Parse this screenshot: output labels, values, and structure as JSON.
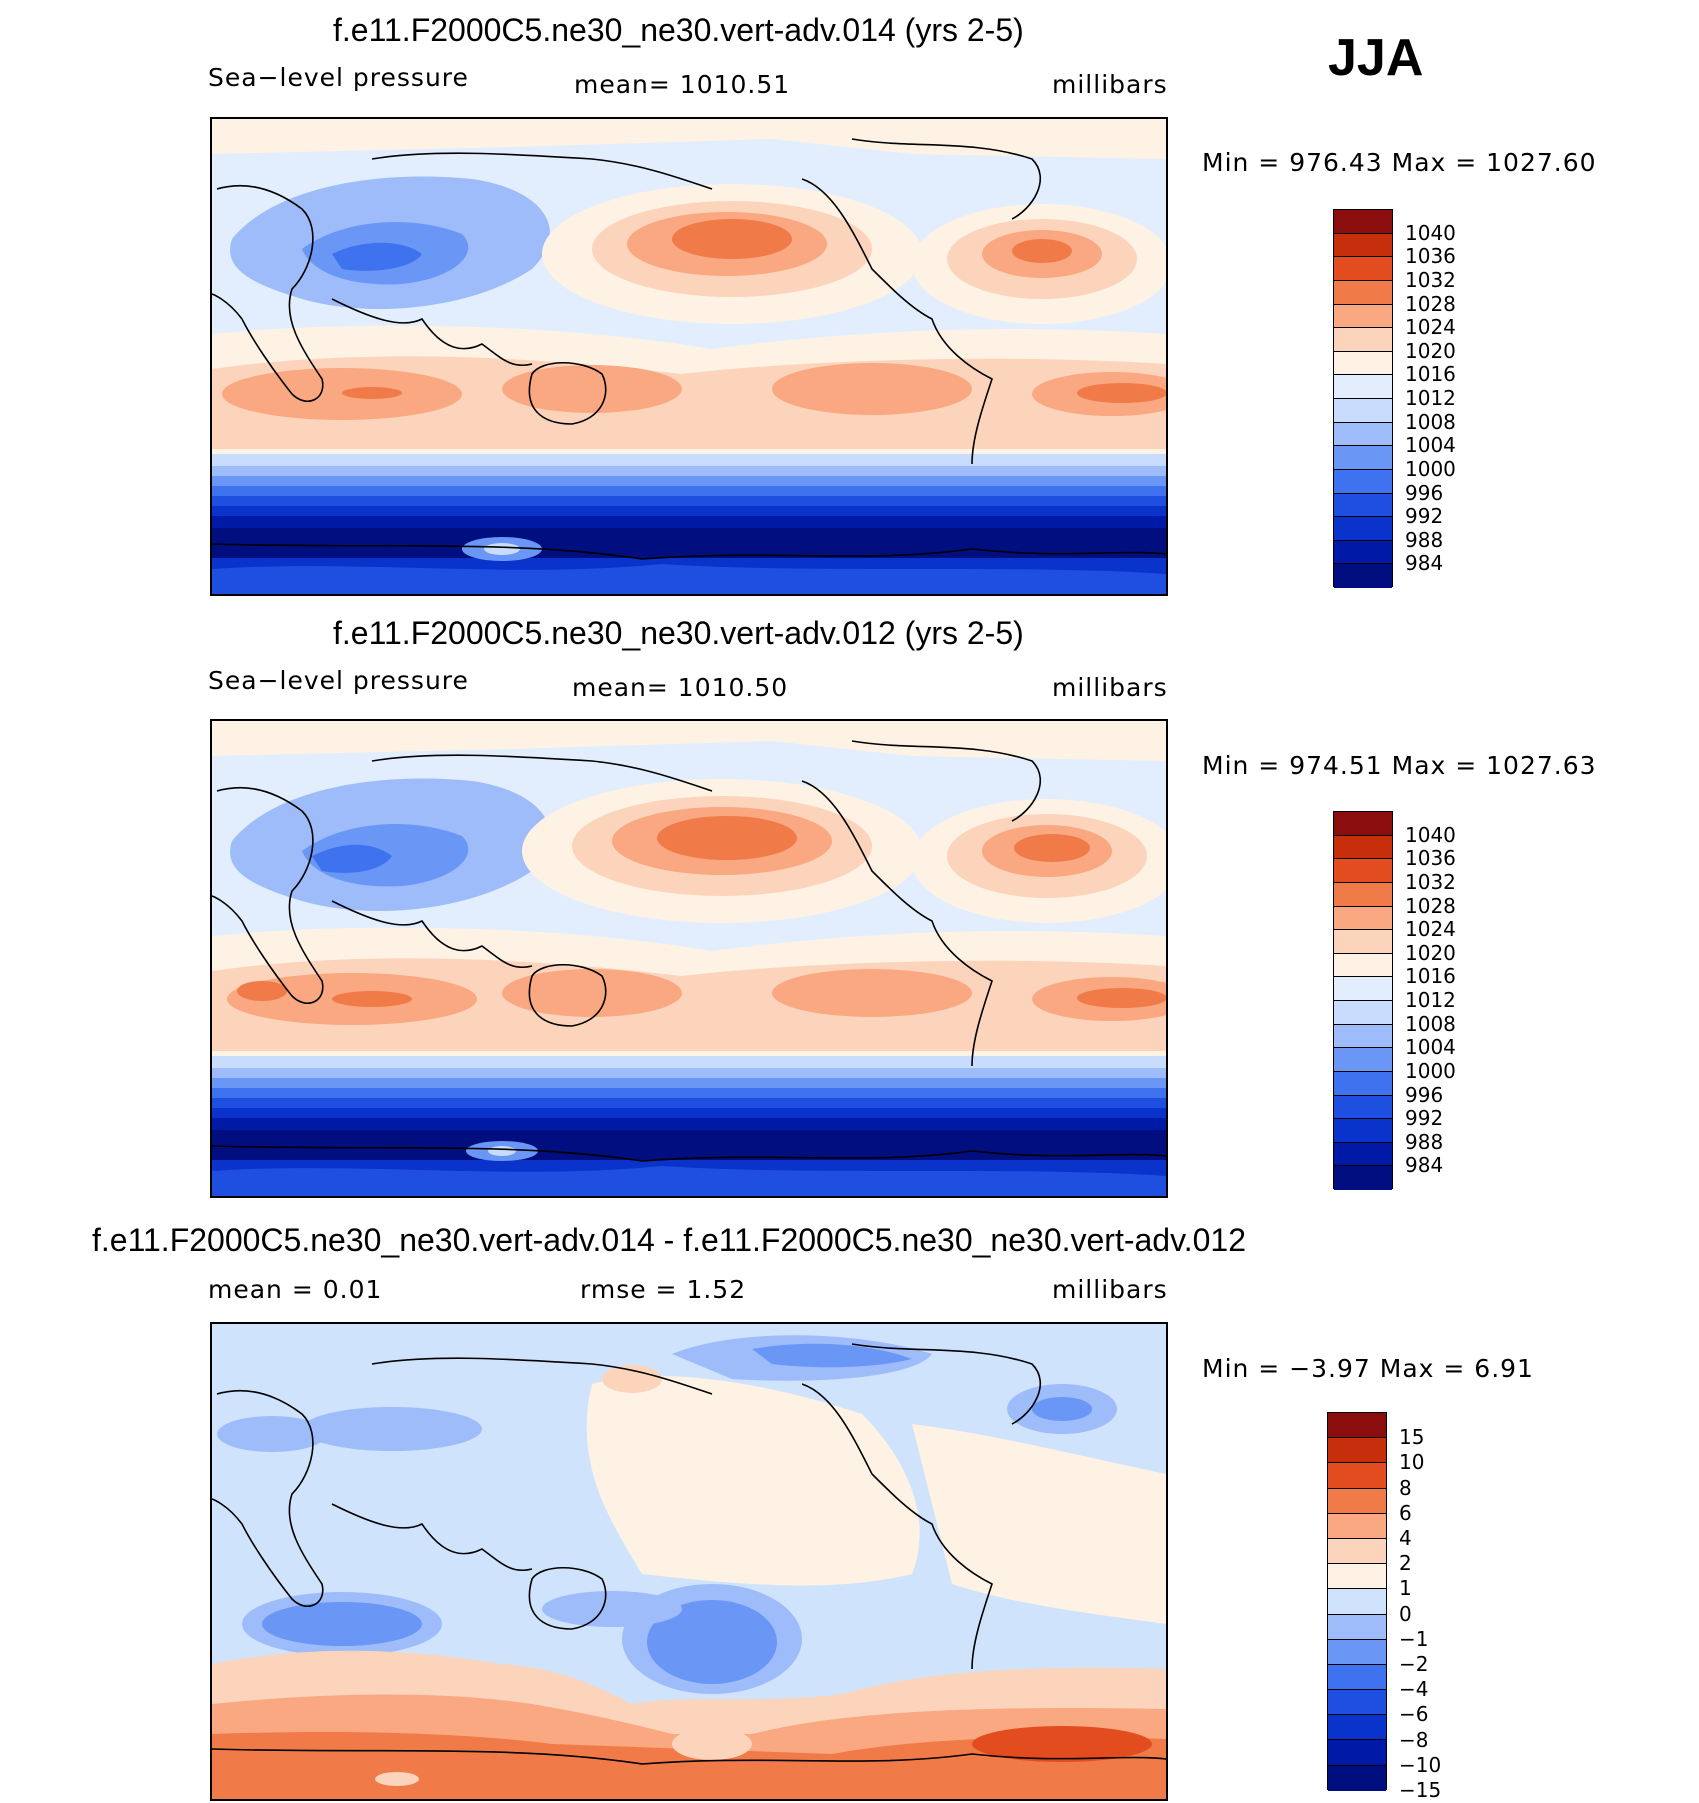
{
  "season": "JJA",
  "palette_sl": [
    "#000e80",
    "#001aa8",
    "#0a33cc",
    "#1f4fe0",
    "#3f72ef",
    "#6a96f6",
    "#9ebcfa",
    "#c8dcfd",
    "#e2eefe",
    "#fef2e4",
    "#fcd4bc",
    "#f9a882",
    "#f07a48",
    "#e24c1e",
    "#c72e0c",
    "#8c0d0d"
  ],
  "palette_diff": [
    "#000e80",
    "#001aa8",
    "#0a33cc",
    "#1f4fe0",
    "#3f72ef",
    "#6a96f6",
    "#9ebcfa",
    "#cfe3fd",
    "#fef2e4",
    "#fcd4bc",
    "#f9a882",
    "#f07a48",
    "#e24c1e",
    "#c72e0c",
    "#8c0d0d"
  ],
  "panels": [
    {
      "title": "f.e11.F2000C5.ne30_ne30.vert-adv.014 (yrs 2-5)",
      "variable": "Sea−level  pressure",
      "mean_text": "mean=  1010.51",
      "units": "millibars",
      "minmax": "Min  =  976.43  Max  =  1027.60",
      "colorbar_labels": [
        "1040",
        "1036",
        "1032",
        "1028",
        "1024",
        "1020",
        "1016",
        "1012",
        "1008",
        "1004",
        "1000",
        "996",
        "992",
        "988",
        "984"
      ]
    },
    {
      "title": "f.e11.F2000C5.ne30_ne30.vert-adv.012 (yrs 2-5)",
      "variable": "Sea−level  pressure",
      "mean_text": "mean=  1010.50",
      "units": "millibars",
      "minmax": "Min  =  974.51  Max  =  1027.63",
      "colorbar_labels": [
        "1040",
        "1036",
        "1032",
        "1028",
        "1024",
        "1020",
        "1016",
        "1012",
        "1008",
        "1004",
        "1000",
        "996",
        "992",
        "988",
        "984"
      ]
    },
    {
      "title": "f.e11.F2000C5.ne30_ne30.vert-adv.014 - f.e11.F2000C5.ne30_ne30.vert-adv.012",
      "mean_text": "mean  =     0.01",
      "rmse_text": "rmse  =     1.52",
      "units": "millibars",
      "minmax": "Min  =    −3.97  Max  =      6.91",
      "colorbar_labels": [
        "15",
        "10",
        "8",
        "6",
        "4",
        "2",
        "1",
        "0",
        "−1",
        "−2",
        "−4",
        "−6",
        "−8",
        "−10",
        "−15"
      ]
    }
  ]
}
